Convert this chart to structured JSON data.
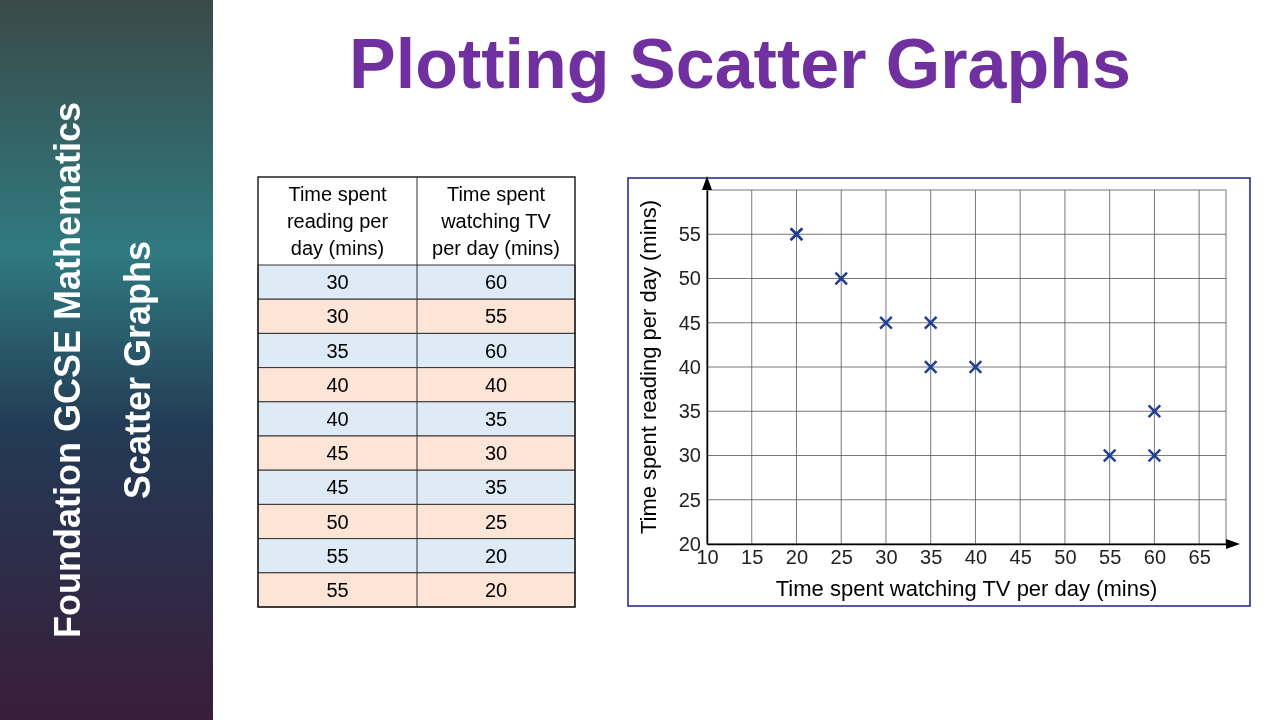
{
  "chart_data": {
    "type": "scatter",
    "title": "Plotting Scatter Graphs",
    "xlabel": "Time spent watching TV per day (mins)",
    "ylabel": "Time spent reading per day (mins)",
    "annotations": [
      "Foundation GCSE Mathematics",
      "Scatter Graphs",
      "Time spent reading per day (mins)",
      "Time spent watching TV per day (mins)",
      "30",
      "60",
      "30",
      "55",
      "35",
      "60",
      "40",
      "40",
      "40",
      "35",
      "45",
      "30",
      "45",
      "35",
      "50",
      "25",
      "55",
      "20",
      "55",
      "20"
    ],
    "x": [
      60,
      55,
      60,
      40,
      35,
      30,
      35,
      25,
      20,
      20
    ],
    "values": [
      30,
      30,
      35,
      40,
      40,
      45,
      45,
      50,
      55,
      55
    ],
    "color": "#1f3f8f",
    "marker": "cross",
    "grid": true,
    "xlim": [
      10,
      68
    ],
    "xticks": [
      10,
      15,
      20,
      25,
      30,
      35,
      40,
      45,
      50,
      55,
      60,
      65
    ],
    "ylim": [
      20,
      60
    ],
    "yticks": [
      20,
      25,
      30,
      35,
      40,
      45,
      50,
      55
    ]
  }
}
